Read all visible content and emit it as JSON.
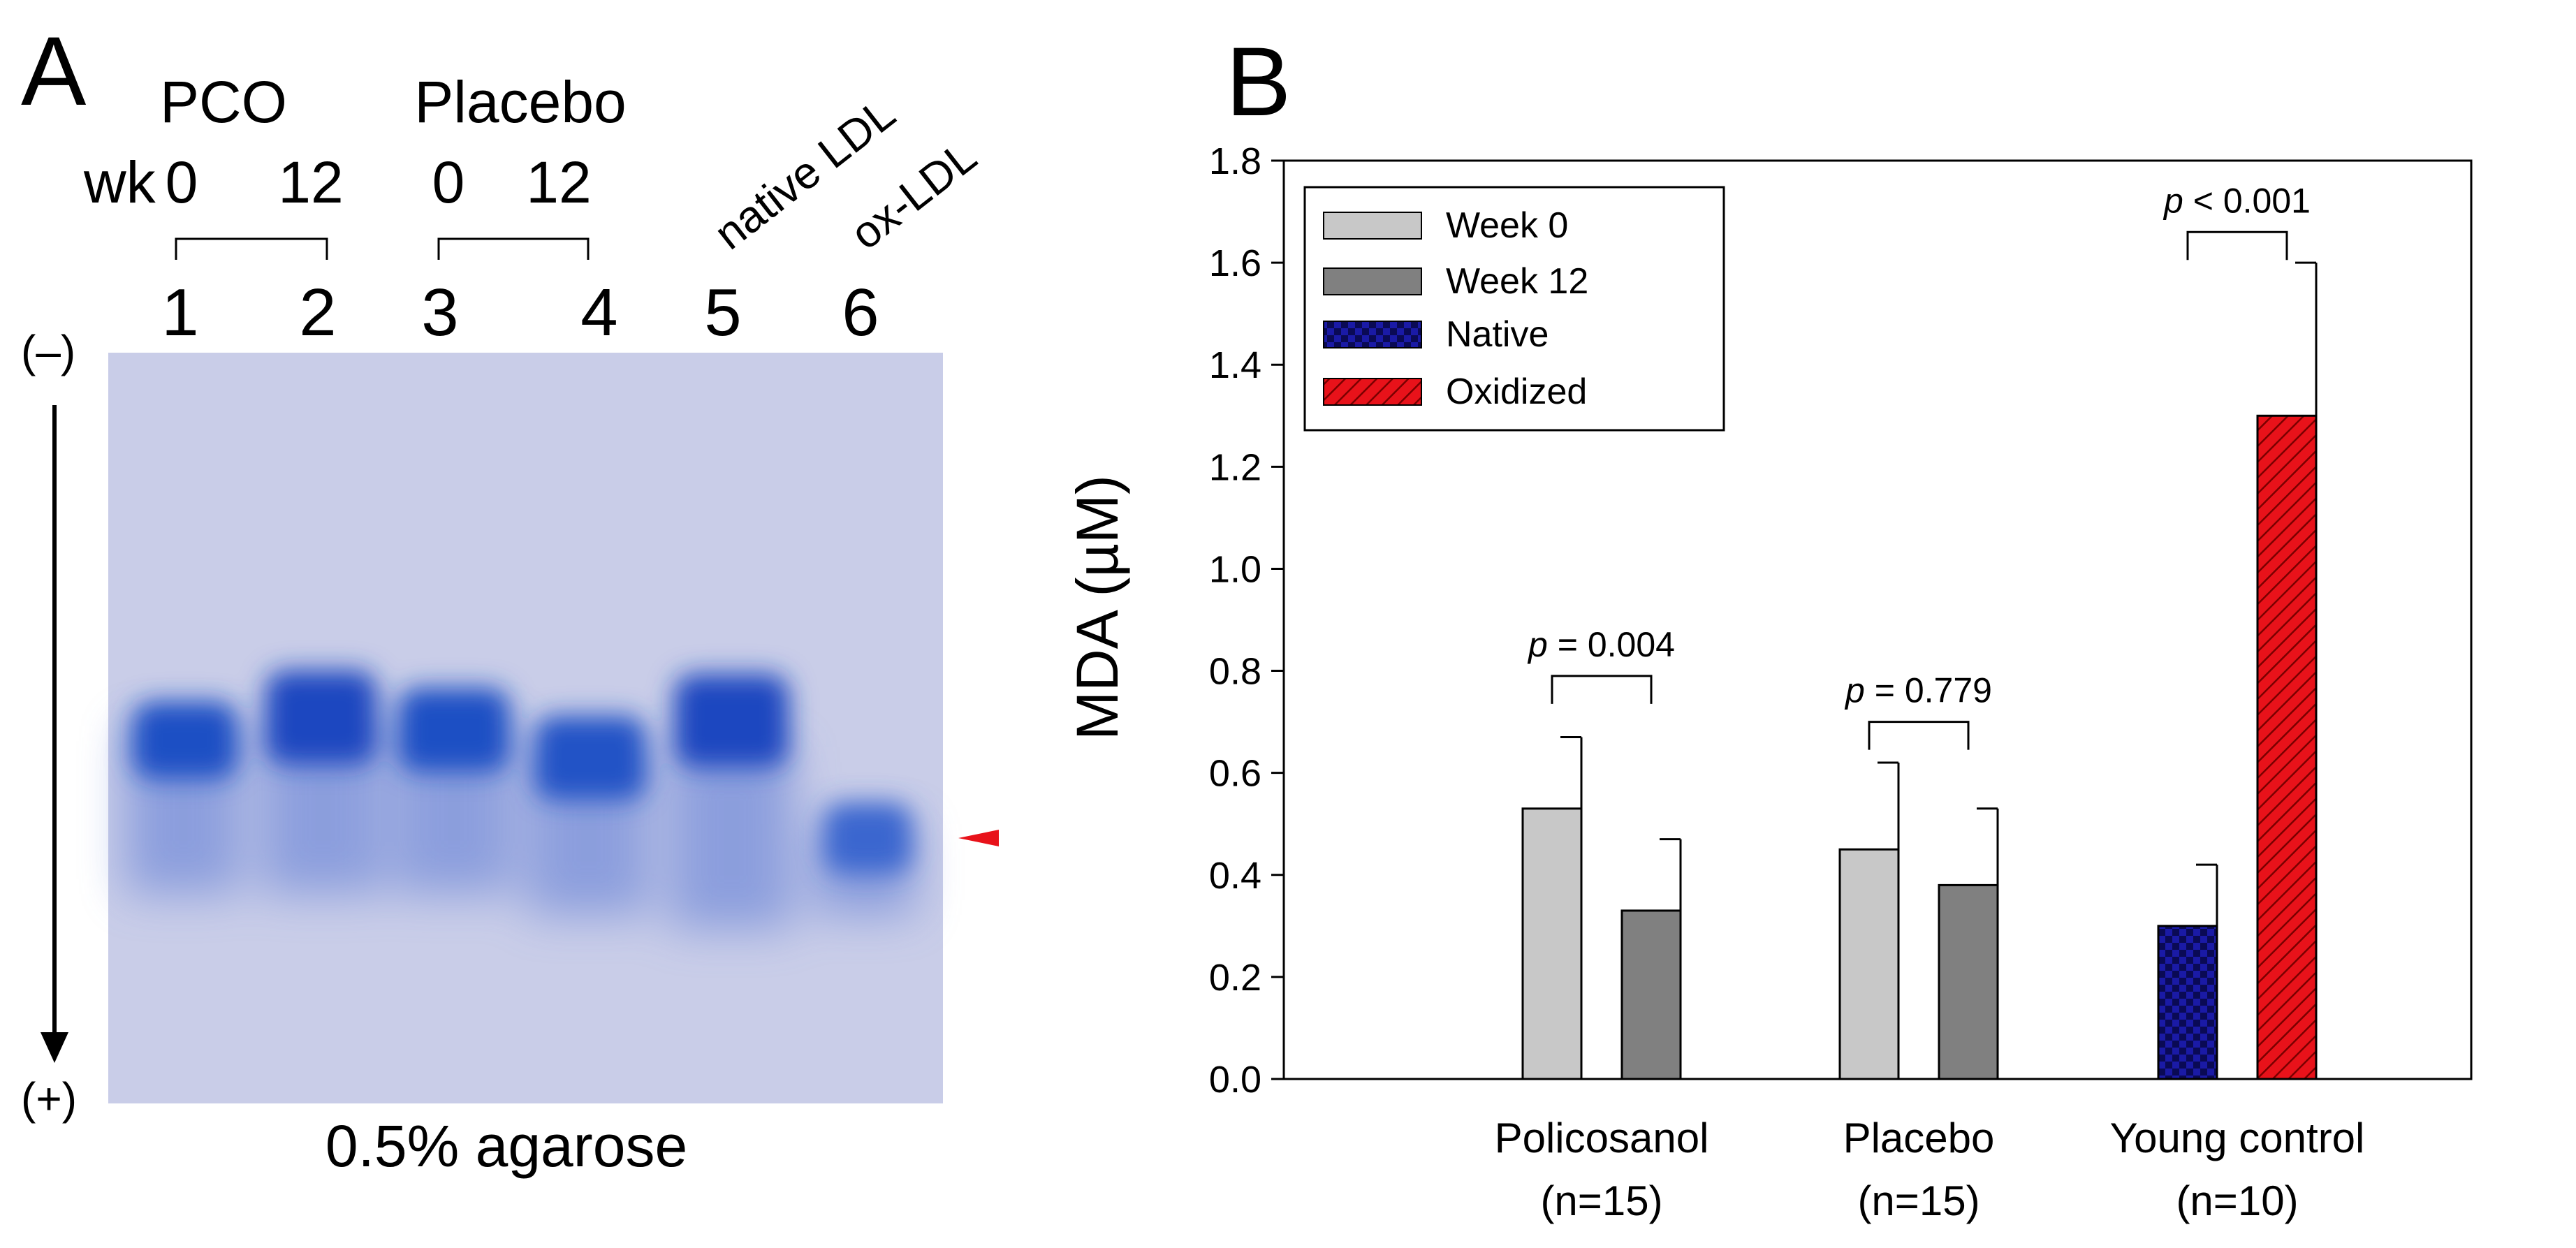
{
  "panel_a": {
    "letter": "A",
    "groups": [
      "PCO",
      "Placebo"
    ],
    "week_prefix": "wk",
    "weeks": [
      "0",
      "12",
      "0",
      "12"
    ],
    "rotated_labels": [
      "native LDL",
      "ox-LDL"
    ],
    "lane_numbers": [
      "1",
      "2",
      "3",
      "4",
      "5",
      "6"
    ],
    "polarity_top": "(–)",
    "polarity_bottom": "(+)",
    "caption": "0.5% agarose",
    "colors": {
      "gel_bg": "#c9cde8",
      "band": "#1f4fc4",
      "arrowhead": "#e8121a"
    }
  },
  "panel_b": {
    "letter": "B"
  },
  "chart_data": {
    "type": "bar",
    "ylabel_prefix": "MDA (",
    "ylabel_unit": "µM",
    "ylabel_suffix": ")",
    "ylim": [
      0,
      1.8
    ],
    "yticks": [
      "0.0",
      "0.2",
      "0.4",
      "0.6",
      "0.8",
      "1.0",
      "1.2",
      "1.4",
      "1.6",
      "1.8"
    ],
    "categories": [
      {
        "name": "Policosanol",
        "n": "(n=15)"
      },
      {
        "name": "Placebo",
        "n": "(n=15)"
      },
      {
        "name": "Young control",
        "n": "(n=10)"
      }
    ],
    "bars": [
      {
        "category": 0,
        "series": "Week 0",
        "value": 0.53,
        "error": 0.14
      },
      {
        "category": 0,
        "series": "Week 12",
        "value": 0.33,
        "error": 0.14
      },
      {
        "category": 1,
        "series": "Week 0",
        "value": 0.45,
        "error": 0.17
      },
      {
        "category": 1,
        "series": "Week 12",
        "value": 0.38,
        "error": 0.15
      },
      {
        "category": 2,
        "series": "Native",
        "value": 0.3,
        "error": 0.12
      },
      {
        "category": 2,
        "series": "Oxidized",
        "value": 1.3,
        "error": 0.3
      }
    ],
    "legend": [
      {
        "name": "Week 0",
        "color": "#c8c8c8"
      },
      {
        "name": "Week 12",
        "color": "#808080"
      },
      {
        "name": "Native",
        "color": "#1a1aa6"
      },
      {
        "name": "Oxidized",
        "color": "#e8121a"
      }
    ],
    "legend_position": "top-left",
    "annotations": [
      {
        "category": 0,
        "p_label": "p",
        "text": " = 0.004",
        "y": 0.79
      },
      {
        "category": 1,
        "p_label": "p",
        "text": " = 0.779",
        "y": 0.7
      },
      {
        "category": 2,
        "p_label": "p",
        "text": " < 0.001",
        "y": 1.66
      }
    ]
  }
}
